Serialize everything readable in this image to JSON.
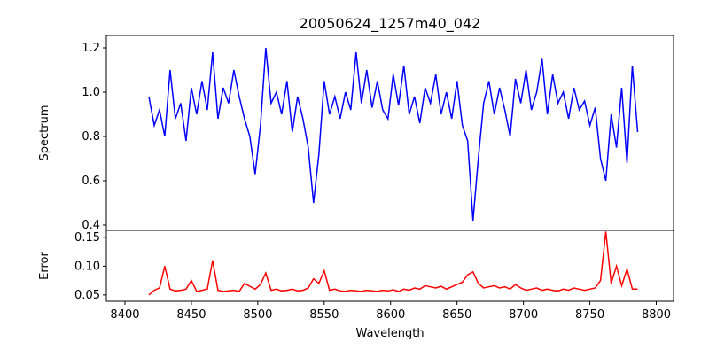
{
  "chart_data": {
    "type": "line",
    "title": "20050624_1257m40_042",
    "xlabel": "Wavelength",
    "xlim": [
      8386,
      8813
    ],
    "xticks": [
      8400,
      8450,
      8500,
      8550,
      8600,
      8650,
      8700,
      8750,
      8800
    ],
    "x_start": 8418,
    "x_step": 4,
    "panels": [
      {
        "name": "Spectrum",
        "ylabel": "Spectrum",
        "ylim": [
          0.376,
          1.256
        ],
        "yticks": [
          0.4,
          0.6,
          0.8,
          1.0,
          1.2
        ],
        "ytick_labels": [
          "0.4",
          "0.6",
          "0.8",
          "1.0",
          "1.2"
        ],
        "color": "#0000ff",
        "values": [
          0.98,
          0.85,
          0.92,
          0.8,
          1.1,
          0.88,
          0.95,
          0.78,
          1.02,
          0.9,
          1.05,
          0.92,
          1.18,
          0.88,
          1.02,
          0.95,
          1.1,
          0.98,
          0.88,
          0.8,
          0.63,
          0.85,
          1.2,
          0.95,
          1.0,
          0.9,
          1.05,
          0.82,
          0.98,
          0.88,
          0.75,
          0.5,
          0.72,
          1.05,
          0.9,
          0.98,
          0.88,
          1.0,
          0.92,
          1.18,
          0.95,
          1.1,
          0.93,
          1.05,
          0.92,
          0.88,
          1.08,
          0.94,
          1.12,
          0.9,
          0.98,
          0.86,
          1.02,
          0.95,
          1.08,
          0.9,
          1.0,
          0.88,
          1.05,
          0.85,
          0.78,
          0.42,
          0.7,
          0.95,
          1.05,
          0.9,
          1.02,
          0.92,
          0.8,
          1.06,
          0.95,
          1.1,
          0.92,
          1.0,
          1.15,
          0.9,
          1.08,
          0.95,
          1.0,
          0.88,
          1.02,
          0.92,
          0.96,
          0.85,
          0.93,
          0.7,
          0.6,
          0.9,
          0.75,
          1.02,
          0.68,
          1.12,
          0.82
        ]
      },
      {
        "name": "Error",
        "ylabel": "Error",
        "ylim": [
          0.039,
          0.162
        ],
        "yticks": [
          0.05,
          0.1,
          0.15
        ],
        "ytick_labels": [
          "0.05",
          "0.10",
          "0.15"
        ],
        "color": "#ff0000",
        "values": [
          0.05,
          0.058,
          0.062,
          0.1,
          0.06,
          0.057,
          0.058,
          0.06,
          0.075,
          0.056,
          0.058,
          0.06,
          0.11,
          0.058,
          0.056,
          0.057,
          0.058,
          0.056,
          0.07,
          0.065,
          0.06,
          0.068,
          0.088,
          0.058,
          0.06,
          0.057,
          0.058,
          0.06,
          0.057,
          0.058,
          0.062,
          0.078,
          0.07,
          0.092,
          0.058,
          0.06,
          0.057,
          0.056,
          0.058,
          0.057,
          0.056,
          0.058,
          0.057,
          0.056,
          0.058,
          0.057,
          0.059,
          0.056,
          0.06,
          0.058,
          0.062,
          0.06,
          0.066,
          0.064,
          0.062,
          0.065,
          0.06,
          0.064,
          0.068,
          0.072,
          0.085,
          0.09,
          0.07,
          0.062,
          0.064,
          0.066,
          0.062,
          0.064,
          0.06,
          0.068,
          0.062,
          0.058,
          0.06,
          0.062,
          0.058,
          0.06,
          0.058,
          0.057,
          0.06,
          0.058,
          0.062,
          0.06,
          0.058,
          0.06,
          0.062,
          0.075,
          0.16,
          0.07,
          0.1,
          0.066,
          0.095,
          0.06,
          0.06
        ]
      }
    ]
  }
}
